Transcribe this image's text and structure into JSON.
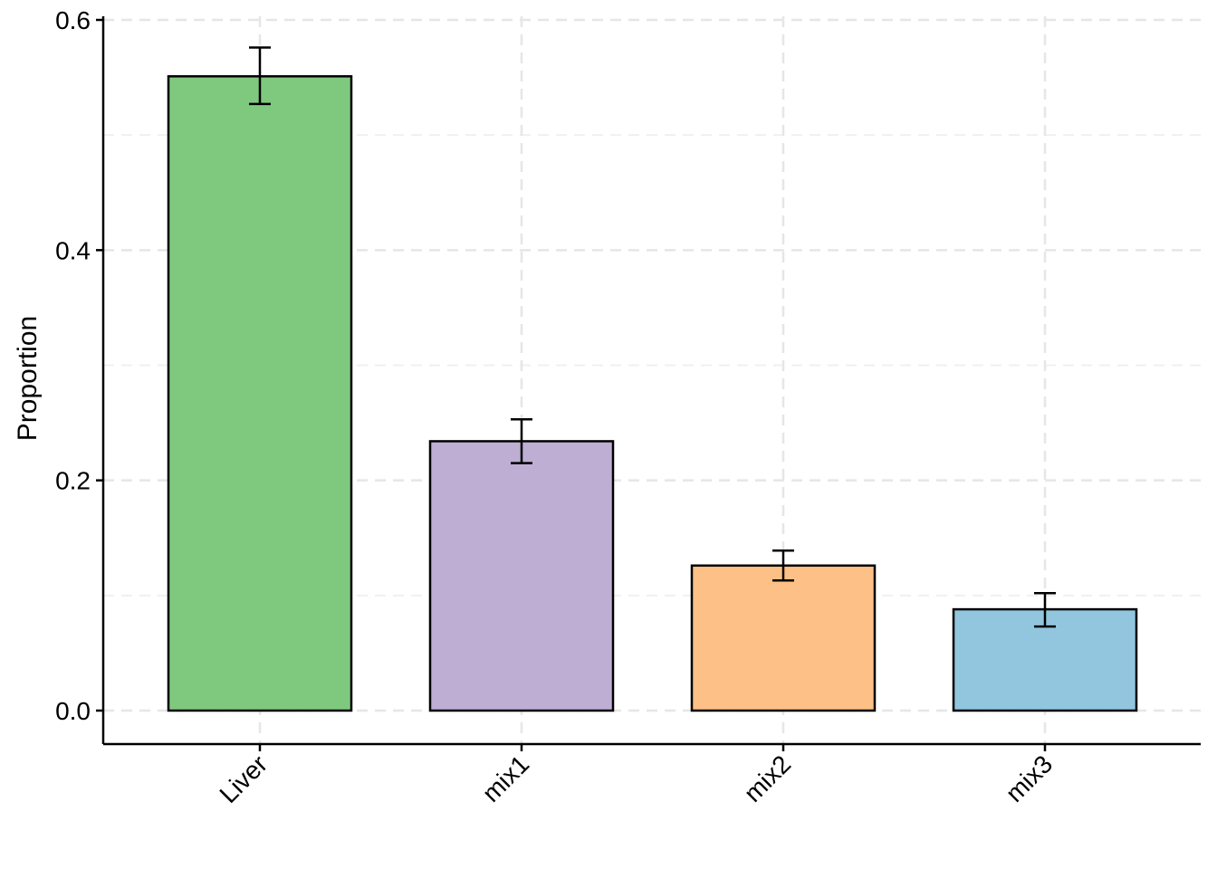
{
  "chart_data": {
    "type": "bar",
    "categories": [
      "Liver",
      "mix1",
      "mix2",
      "mix3"
    ],
    "values": [
      0.551,
      0.234,
      0.126,
      0.088
    ],
    "error_low": [
      0.527,
      0.215,
      0.113,
      0.073
    ],
    "error_high": [
      0.576,
      0.253,
      0.139,
      0.102
    ],
    "colors": [
      "#7fc97f",
      "#beaed4",
      "#fdc086",
      "#92c5de"
    ],
    "ylabel": "Proportion",
    "xlabel": "",
    "ylim": [
      -0.03,
      0.6
    ],
    "yticks": [
      0.0,
      0.2,
      0.4,
      0.6
    ],
    "ytick_labels": [
      "0.0",
      "0.2",
      "0.4",
      "0.6"
    ],
    "grid": true,
    "legend": "none"
  }
}
